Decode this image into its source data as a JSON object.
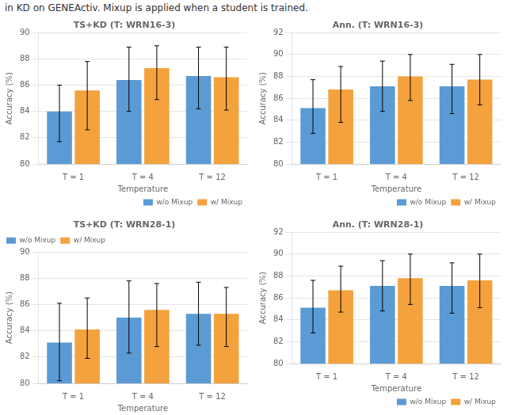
{
  "title": "in KD on GENEActiv. Mixup is applied when a student is trained.",
  "chart_data": [
    {
      "type": "bar",
      "title": "TS+KD (T: WRN16-3)",
      "x_label": "Temperature",
      "y_label": "Accuracy (%)",
      "categories": [
        "T = 1",
        "T = 4",
        "T = 12"
      ],
      "series": [
        {
          "name": "w/o Mixup",
          "color": "#5b9bd5",
          "values": [
            84.0,
            86.4,
            86.7
          ],
          "errors": [
            [
              2.3,
              2.0
            ],
            [
              2.4,
              2.5
            ],
            [
              2.5,
              2.2
            ]
          ]
        },
        {
          "name": "w/ Mixup",
          "color": "#f4a23d",
          "values": [
            85.6,
            87.3,
            86.6
          ],
          "errors": [
            [
              3.0,
              2.2
            ],
            [
              2.4,
              1.7
            ],
            [
              2.5,
              2.3
            ]
          ]
        }
      ],
      "ylim": [
        80,
        90
      ],
      "yticks": [
        80,
        82,
        84,
        86,
        88,
        90
      ],
      "grid": true,
      "legend": "lower right"
    },
    {
      "type": "bar",
      "title": "Ann. (T: WRN16-3)",
      "x_label": "Temperature",
      "y_label": "Accuracy (%)",
      "categories": [
        "T = 1",
        "T = 4",
        "T = 12"
      ],
      "series": [
        {
          "name": "w/o Mixup",
          "color": "#5b9bd5",
          "values": [
            85.1,
            87.1,
            87.1
          ],
          "errors": [
            [
              2.3,
              2.6
            ],
            [
              2.3,
              2.3
            ],
            [
              2.5,
              2.0
            ]
          ]
        },
        {
          "name": "w/ Mixup",
          "color": "#f4a23d",
          "values": [
            86.8,
            88.0,
            87.7
          ],
          "errors": [
            [
              3.0,
              2.1
            ],
            [
              2.2,
              2.0
            ],
            [
              2.3,
              2.3
            ]
          ]
        }
      ],
      "ylim": [
        80,
        92
      ],
      "yticks": [
        80,
        82,
        84,
        86,
        88,
        90,
        92
      ],
      "grid": true,
      "legend": "lower right"
    },
    {
      "type": "bar",
      "title": "TS+KD (T: WRN28-1)",
      "x_label": "Temperature",
      "y_label": "Accuracy (%)",
      "categories": [
        "T = 1",
        "T = 4",
        "T = 12"
      ],
      "series": [
        {
          "name": "w/o Mixup",
          "color": "#5b9bd5",
          "values": [
            83.1,
            85.0,
            85.3
          ],
          "errors": [
            [
              2.9,
              3.0
            ],
            [
              2.7,
              2.8
            ],
            [
              2.4,
              2.4
            ]
          ]
        },
        {
          "name": "w/ Mixup",
          "color": "#f4a23d",
          "values": [
            84.1,
            85.6,
            85.3
          ],
          "errors": [
            [
              2.2,
              2.4
            ],
            [
              2.8,
              2.0
            ],
            [
              2.5,
              2.0
            ]
          ]
        }
      ],
      "ylim": [
        80,
        90
      ],
      "yticks": [
        80,
        82,
        84,
        86,
        88,
        90
      ],
      "grid": true,
      "legend": "upper left"
    },
    {
      "type": "bar",
      "title": "Ann. (T: WRN28-1)",
      "x_label": "Temperature",
      "y_label": "Accuracy (%)",
      "categories": [
        "T = 1",
        "T = 4",
        "T = 12"
      ],
      "series": [
        {
          "name": "w/o Mixup",
          "color": "#5b9bd5",
          "values": [
            85.1,
            87.1,
            87.1
          ],
          "errors": [
            [
              2.3,
              2.5
            ],
            [
              2.3,
              2.3
            ],
            [
              2.5,
              2.1
            ]
          ]
        },
        {
          "name": "w/ Mixup",
          "color": "#f4a23d",
          "values": [
            86.7,
            87.8,
            87.6
          ],
          "errors": [
            [
              2.0,
              2.2
            ],
            [
              2.4,
              2.2
            ],
            [
              2.5,
              2.4
            ]
          ]
        }
      ],
      "ylim": [
        80,
        92
      ],
      "yticks": [
        80,
        82,
        84,
        86,
        88,
        90,
        92
      ],
      "grid": true,
      "legend": "lower right"
    }
  ]
}
